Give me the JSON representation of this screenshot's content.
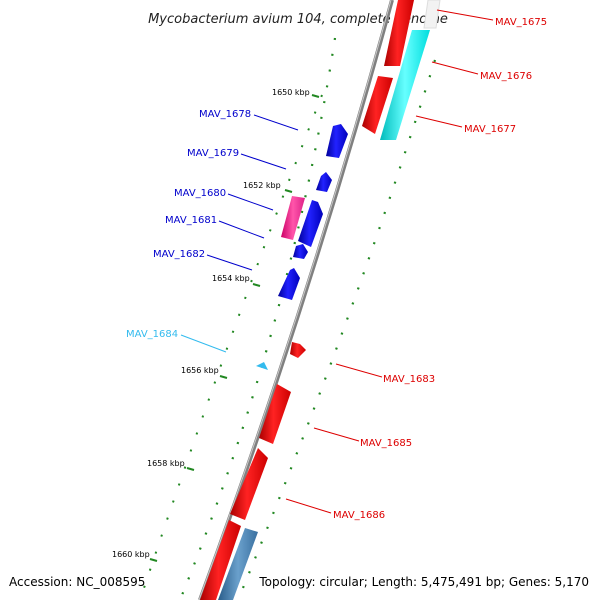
{
  "title": "Mycobacterium avium 104, complete genome",
  "footer": {
    "accession": "Accession: NC_008595",
    "summary": "Topology: circular; Length: 5,475,491 bp; Genes: 5,170"
  },
  "colors": {
    "backbone": "#808080",
    "forward_gene": "#ff0000",
    "reverse_gene": "#0000ff",
    "label_forward": "#dd0000",
    "label_reverse": "#0000cc",
    "label_cyan": "#33bbee",
    "tick": "#228822",
    "pink_gene": "#ff3399",
    "cyan_gene": "#00eeee",
    "steel_gene": "#4682b4"
  },
  "kbp_markers": [
    "1650 kbp",
    "1652 kbp",
    "1654 kbp",
    "1656 kbp",
    "1658 kbp",
    "1660 kbp"
  ],
  "gene_labels": {
    "MAV_1675": "MAV_1675",
    "MAV_1676": "MAV_1676",
    "MAV_1677": "MAV_1677",
    "MAV_1678": "MAV_1678",
    "MAV_1679": "MAV_1679",
    "MAV_1680": "MAV_1680",
    "MAV_1681": "MAV_1681",
    "MAV_1682": "MAV_1682",
    "MAV_1683": "MAV_1683",
    "MAV_1684": "MAV_1684",
    "MAV_1685": "MAV_1685",
    "MAV_1686": "MAV_1686"
  }
}
